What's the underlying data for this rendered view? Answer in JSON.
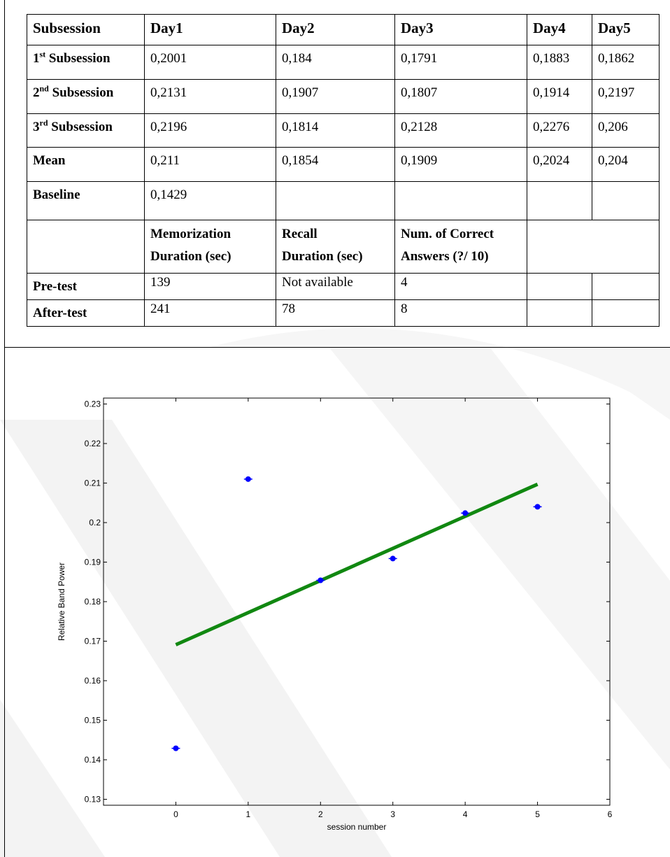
{
  "table": {
    "header": [
      "Subsession",
      "Day1",
      "Day2",
      "Day3",
      "Day4",
      "Day5"
    ],
    "rows": [
      {
        "ord": "1",
        "sup": "st",
        "rest": " Subsession",
        "values": [
          "0,2001",
          "0,184",
          "0,1791",
          "0,1883",
          "0,1862"
        ]
      },
      {
        "ord": "2",
        "sup": "nd",
        "rest": " Subsession",
        "values": [
          "0,2131",
          "0,1907",
          "0,1807",
          "0,1914",
          "0,2197"
        ]
      },
      {
        "ord": "3",
        "sup": "rd",
        "rest": " Subsession",
        "values": [
          "0,2196",
          "0,1814",
          "0,2128",
          "0,2276",
          "0,206"
        ]
      }
    ],
    "mean": {
      "label": "Mean",
      "values": [
        "0,211",
        "0,1854",
        "0,1909",
        "0,2024",
        "0,204"
      ]
    },
    "baseline": {
      "label": "Baseline",
      "value": "0,1429"
    },
    "test_header": {
      "memorization": [
        "Memorization",
        "Duration (sec)"
      ],
      "recall": [
        "Recall",
        "Duration (sec)"
      ],
      "correct": [
        "Num. of Correct",
        "Answers (?/ 10)"
      ]
    },
    "pretest": {
      "label": "Pre-test",
      "values": [
        "139",
        "Not available",
        "4"
      ]
    },
    "aftertest": {
      "label": "After-test",
      "values": [
        "241",
        "78",
        "8"
      ]
    }
  },
  "chart_data": {
    "type": "scatter",
    "title": "",
    "xlabel": "session number",
    "ylabel": "Relative Band Power",
    "xlim": [
      -1,
      6
    ],
    "ylim": [
      0.1285,
      0.2315
    ],
    "x_ticks": [
      0,
      1,
      2,
      3,
      4,
      5,
      6
    ],
    "y_ticks": [
      0.13,
      0.14,
      0.15,
      0.16,
      0.17,
      0.18,
      0.19,
      0.2,
      0.21,
      0.22,
      0.23
    ],
    "y_tick_labels": [
      "0.13",
      "0.14",
      "0.15",
      "0.16",
      "0.17",
      "0.18",
      "0.19",
      "0.2",
      "0.21",
      "0.22",
      "0.23"
    ],
    "points": {
      "x": [
        0,
        1,
        2,
        3,
        4,
        5
      ],
      "y": [
        0.1429,
        0.211,
        0.1854,
        0.1909,
        0.2024,
        0.204
      ]
    },
    "fit_line": {
      "x": [
        0,
        5
      ],
      "y": [
        0.1691,
        0.2097
      ]
    },
    "colors": {
      "points": "#0000ff",
      "fit_line": "#118811"
    }
  }
}
